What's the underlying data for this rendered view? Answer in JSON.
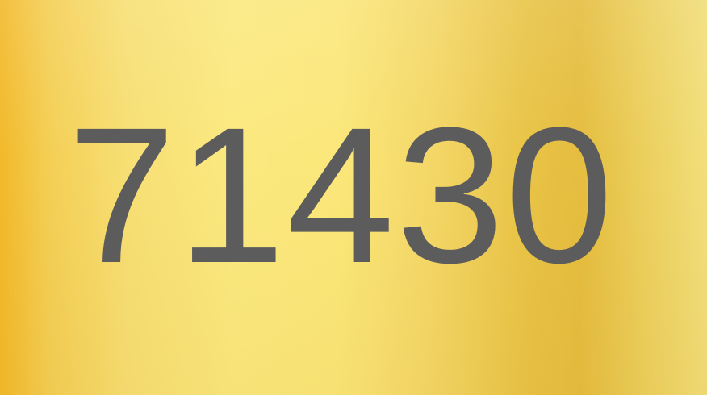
{
  "display": {
    "number": "71430"
  },
  "colors": {
    "text": "#5c5c5c",
    "background_gold_dark": "#f2b92a",
    "background_gold_light": "#fbe97f"
  }
}
